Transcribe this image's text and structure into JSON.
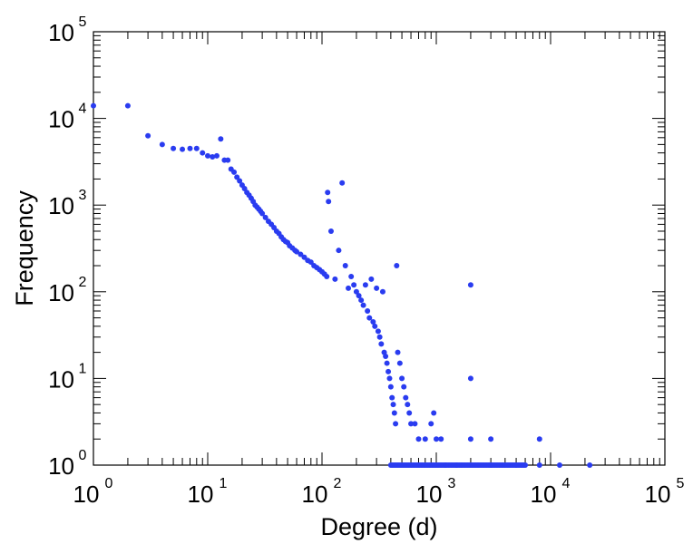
{
  "chart_data": {
    "type": "scatter",
    "title": "",
    "xlabel": "Degree (d)",
    "ylabel": "Frequency",
    "x_scale": "log",
    "y_scale": "log",
    "xlim": [
      1,
      100000
    ],
    "ylim": [
      1,
      100000
    ],
    "x_ticks": [
      {
        "base": "10",
        "exp": "0"
      },
      {
        "base": "10",
        "exp": "1"
      },
      {
        "base": "10",
        "exp": "2"
      },
      {
        "base": "10",
        "exp": "3"
      },
      {
        "base": "10",
        "exp": "4"
      },
      {
        "base": "10",
        "exp": "5"
      }
    ],
    "y_ticks": [
      {
        "base": "10",
        "exp": "0"
      },
      {
        "base": "10",
        "exp": "1"
      },
      {
        "base": "10",
        "exp": "2"
      },
      {
        "base": "10",
        "exp": "3"
      },
      {
        "base": "10",
        "exp": "4"
      },
      {
        "base": "10",
        "exp": "5"
      }
    ],
    "grid": false,
    "marker_color": "#2a3cf0",
    "series": [
      {
        "points": [
          [
            1,
            14000
          ],
          [
            2,
            14000
          ],
          [
            3,
            6300
          ],
          [
            4,
            5000
          ],
          [
            5,
            4500
          ],
          [
            6,
            4400
          ],
          [
            7,
            4500
          ],
          [
            8,
            4500
          ],
          [
            9,
            4000
          ],
          [
            10,
            3700
          ],
          [
            11,
            3600
          ],
          [
            12,
            3700
          ],
          [
            13,
            5800
          ],
          [
            14,
            3300
          ],
          [
            15,
            3300
          ],
          [
            16,
            2600
          ],
          [
            17,
            2400
          ],
          [
            18,
            2100
          ],
          [
            19,
            1900
          ],
          [
            20,
            1700
          ],
          [
            21,
            1550
          ],
          [
            22,
            1400
          ],
          [
            23,
            1300
          ],
          [
            24,
            1200
          ],
          [
            25,
            1100
          ],
          [
            26,
            1000
          ],
          [
            27,
            950
          ],
          [
            28,
            900
          ],
          [
            29,
            850
          ],
          [
            30,
            800
          ],
          [
            32,
            720
          ],
          [
            34,
            650
          ],
          [
            36,
            600
          ],
          [
            38,
            550
          ],
          [
            40,
            500
          ],
          [
            42,
            470
          ],
          [
            44,
            430
          ],
          [
            46,
            400
          ],
          [
            48,
            380
          ],
          [
            50,
            370
          ],
          [
            52,
            340
          ],
          [
            55,
            320
          ],
          [
            58,
            300
          ],
          [
            60,
            290
          ],
          [
            65,
            270
          ],
          [
            70,
            250
          ],
          [
            75,
            230
          ],
          [
            80,
            220
          ],
          [
            85,
            200
          ],
          [
            90,
            190
          ],
          [
            95,
            180
          ],
          [
            100,
            170
          ],
          [
            105,
            160
          ],
          [
            110,
            150
          ],
          [
            112,
            1400
          ],
          [
            114,
            1100
          ],
          [
            120,
            500
          ],
          [
            130,
            140
          ],
          [
            140,
            300
          ],
          [
            150,
            1800
          ],
          [
            160,
            200
          ],
          [
            170,
            110
          ],
          [
            180,
            150
          ],
          [
            190,
            120
          ],
          [
            200,
            100
          ],
          [
            210,
            90
          ],
          [
            220,
            80
          ],
          [
            230,
            70
          ],
          [
            240,
            120
          ],
          [
            250,
            60
          ],
          [
            260,
            50
          ],
          [
            270,
            140
          ],
          [
            280,
            45
          ],
          [
            290,
            40
          ],
          [
            300,
            110
          ],
          [
            310,
            35
          ],
          [
            320,
            30
          ],
          [
            330,
            25
          ],
          [
            340,
            100
          ],
          [
            350,
            20
          ],
          [
            360,
            18
          ],
          [
            370,
            15
          ],
          [
            380,
            12
          ],
          [
            390,
            10
          ],
          [
            400,
            8
          ],
          [
            410,
            6
          ],
          [
            420,
            5
          ],
          [
            430,
            4
          ],
          [
            440,
            3
          ],
          [
            450,
            200
          ],
          [
            460,
            20
          ],
          [
            480,
            15
          ],
          [
            500,
            10
          ],
          [
            520,
            8
          ],
          [
            540,
            6
          ],
          [
            560,
            5
          ],
          [
            580,
            4
          ],
          [
            600,
            3
          ],
          [
            650,
            3
          ],
          [
            700,
            2
          ],
          [
            800,
            2
          ],
          [
            900,
            3
          ],
          [
            950,
            4
          ],
          [
            1000,
            2
          ],
          [
            1100,
            2
          ],
          [
            1200,
            1
          ],
          [
            1500,
            1
          ],
          [
            2000,
            120
          ],
          [
            2000,
            10
          ],
          [
            2000,
            2
          ],
          [
            3000,
            2
          ],
          [
            8000,
            2
          ],
          [
            3000,
            1
          ],
          [
            5000,
            1
          ],
          [
            8000,
            1
          ],
          [
            12000,
            1
          ],
          [
            22000,
            1
          ]
        ]
      }
    ]
  }
}
